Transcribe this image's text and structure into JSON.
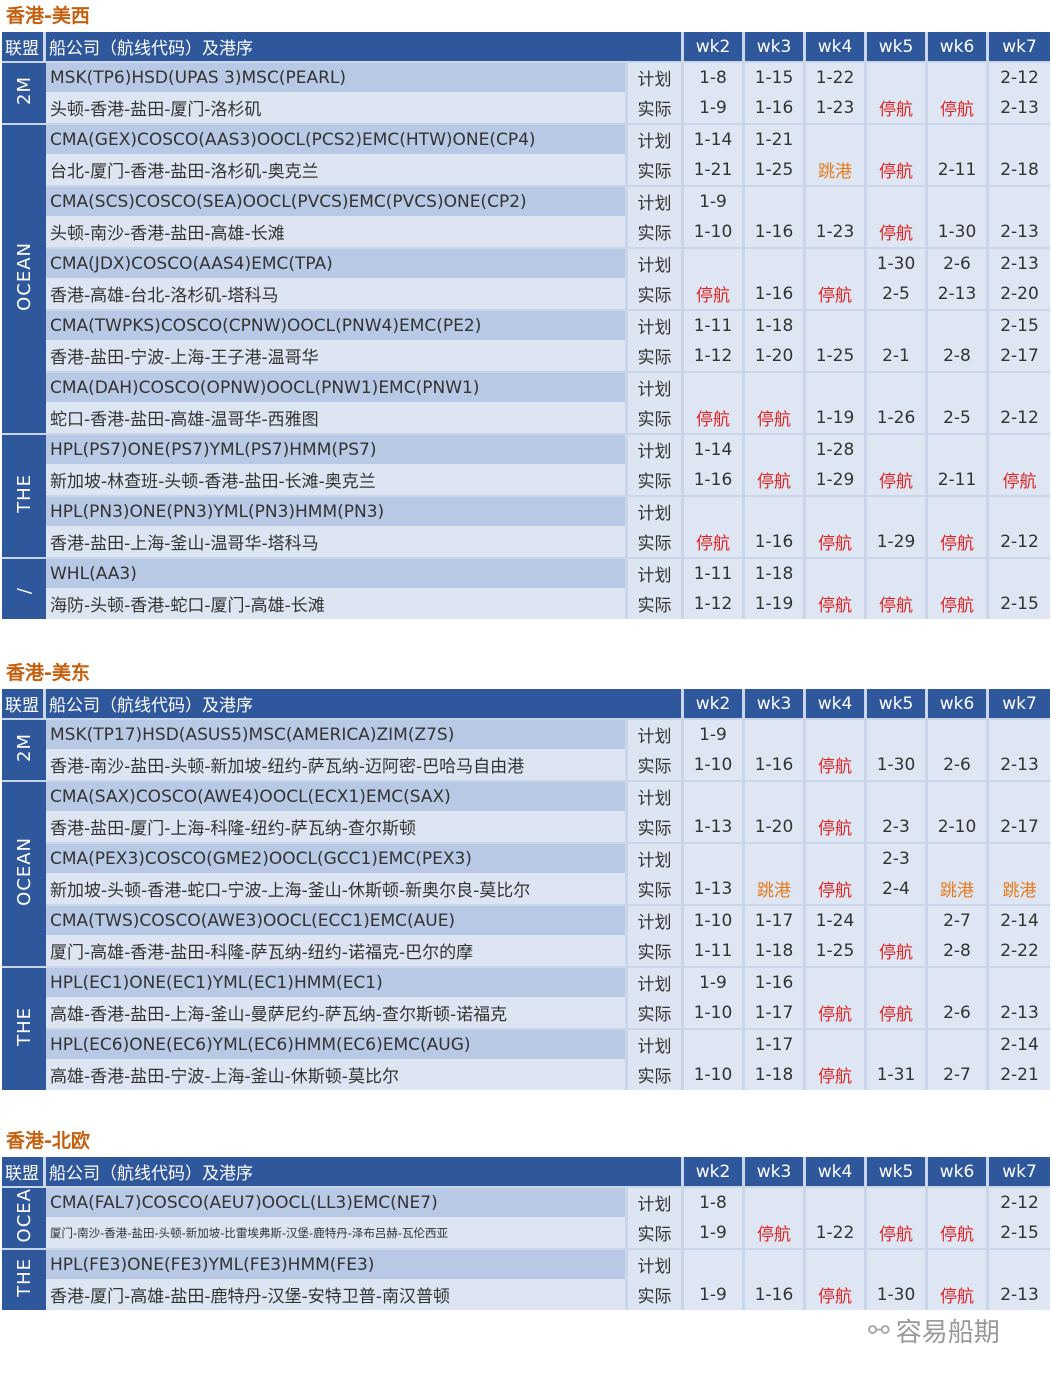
{
  "headers": {
    "alliance": "联盟",
    "route": "船公司（航线代码）及港序",
    "weeks": [
      "wk2",
      "wk3",
      "wk4",
      "wk5",
      "wk6",
      "wk7"
    ]
  },
  "labels": {
    "plan": "计划",
    "actual": "实际"
  },
  "colors": {
    "header": "#2f579b",
    "title": "#c5600f",
    "suspended": "#e02424",
    "skip": "#e87a1c"
  },
  "sections": [
    {
      "title": "香港-美西",
      "groups": [
        {
          "alliance": "2M",
          "services": [
            {
              "route": "MSK(TP6)HSD(UPAS 3)MSC(PEARL)",
              "ports": "头顿-香港-盐田-厦门-洛杉矶",
              "plan": [
                "1-8",
                "1-15",
                "1-22",
                "",
                "",
                "2-12"
              ],
              "actual": [
                "1-9",
                "1-16",
                "1-23",
                "停航",
                "停航",
                "2-13"
              ]
            }
          ]
        },
        {
          "alliance": "OCEAN",
          "services": [
            {
              "route": "CMA(GEX)COSCO(AAS3)OOCL(PCS2)EMC(HTW)ONE(CP4)",
              "ports": "台北-厦门-香港-盐田-洛杉矶-奥克兰",
              "plan": [
                "1-14",
                "1-21",
                "",
                "",
                "",
                ""
              ],
              "actual": [
                "1-21",
                "1-25",
                "跳港",
                "停航",
                "2-11",
                "2-18"
              ]
            },
            {
              "route": "CMA(SCS)COSCO(SEA)OOCL(PVCS)EMC(PVCS)ONE(CP2)",
              "ports": "头顿-南沙-香港-盐田-高雄-长滩",
              "plan": [
                "1-9",
                "",
                "",
                "",
                "",
                ""
              ],
              "actual": [
                "1-10",
                "1-16",
                "1-23",
                "停航",
                "1-30",
                "2-13"
              ]
            },
            {
              "route": "CMA(JDX)COSCO(AAS4)EMC(TPA)",
              "ports": "香港-高雄-台北-洛杉矶-塔科马",
              "plan": [
                "",
                "",
                "",
                "1-30",
                "2-6",
                "2-13"
              ],
              "actual": [
                "停航",
                "1-16",
                "停航",
                "2-5",
                "2-13",
                "2-20"
              ]
            },
            {
              "route": "CMA(TWPKS)COSCO(CPNW)OOCL(PNW4)EMC(PE2)",
              "ports": "香港-盐田-宁波-上海-王子港-温哥华",
              "plan": [
                "1-11",
                "1-18",
                "",
                "",
                "",
                "2-15"
              ],
              "actual": [
                "1-12",
                "1-20",
                "1-25",
                "2-1",
                "2-8",
                "2-17"
              ]
            },
            {
              "route": "CMA(DAH)COSCO(OPNW)OOCL(PNW1)EMC(PNW1)",
              "ports": "蛇口-香港-盐田-高雄-温哥华-西雅图",
              "plan": [
                "",
                "",
                "",
                "",
                "",
                ""
              ],
              "actual": [
                "停航",
                "停航",
                "1-19",
                "1-26",
                "2-5",
                "2-12"
              ]
            }
          ]
        },
        {
          "alliance": "THE",
          "services": [
            {
              "route": "HPL(PS7)ONE(PS7)YML(PS7)HMM(PS7)",
              "ports": "新加坡-林查班-头顿-香港-盐田-长滩-奥克兰",
              "plan": [
                "1-14",
                "",
                "1-28",
                "",
                "",
                ""
              ],
              "actual": [
                "1-16",
                "停航",
                "1-29",
                "停航",
                "2-11",
                "停航"
              ]
            },
            {
              "route": "HPL(PN3)ONE(PN3)YML(PN3)HMM(PN3)",
              "ports": "香港-盐田-上海-釜山-温哥华-塔科马",
              "plan": [
                "",
                "",
                "",
                "",
                "",
                ""
              ],
              "actual": [
                "停航",
                "1-16",
                "停航",
                "1-29",
                "停航",
                "2-12"
              ]
            }
          ]
        },
        {
          "alliance": "/",
          "services": [
            {
              "route": "WHL(AA3)",
              "ports": "海防-头顿-香港-蛇口-厦门-高雄-长滩",
              "plan": [
                "1-11",
                "1-18",
                "",
                "",
                "",
                ""
              ],
              "actual": [
                "1-12",
                "1-19",
                "停航",
                "停航",
                "停航",
                "2-15"
              ]
            }
          ]
        }
      ]
    },
    {
      "title": "香港-美东",
      "groups": [
        {
          "alliance": "2M",
          "services": [
            {
              "route": "MSK(TP17)HSD(ASUS5)MSC(AMERICA)ZIM(Z7S)",
              "ports": "香港-南沙-盐田-头顿-新加坡-纽约-萨瓦纳-迈阿密-巴哈马自由港",
              "plan": [
                "1-9",
                "",
                "",
                "",
                "",
                ""
              ],
              "actual": [
                "1-10",
                "1-16",
                "停航",
                "1-30",
                "2-6",
                "2-13"
              ]
            }
          ]
        },
        {
          "alliance": "OCEAN",
          "services": [
            {
              "route": "CMA(SAX)COSCO(AWE4)OOCL(ECX1)EMC(SAX)",
              "ports": "香港-盐田-厦门-上海-科隆-纽约-萨瓦纳-查尔斯顿",
              "plan": [
                "",
                "",
                "",
                "",
                "",
                ""
              ],
              "actual": [
                "1-13",
                "1-20",
                "停航",
                "2-3",
                "2-10",
                "2-17"
              ]
            },
            {
              "route": "CMA(PEX3)COSCO(GME2)OOCL(GCC1)EMC(PEX3)",
              "ports": "新加坡-头顿-香港-蛇口-宁波-上海-釜山-休斯顿-新奥尔良-莫比尔",
              "plan": [
                "",
                "",
                "",
                "2-3",
                "",
                ""
              ],
              "actual": [
                "1-13",
                "跳港",
                "停航",
                "2-4",
                "跳港",
                "跳港"
              ]
            },
            {
              "route": "CMA(TWS)COSCO(AWE3)OOCL(ECC1)EMC(AUE)",
              "ports": "厦门-高雄-香港-盐田-科隆-萨瓦纳-纽约-诺福克-巴尔的摩",
              "plan": [
                "1-10",
                "1-17",
                "1-24",
                "",
                "2-7",
                "2-14"
              ],
              "actual": [
                "1-11",
                "1-18",
                "1-25",
                "停航",
                "2-8",
                "2-22"
              ]
            }
          ]
        },
        {
          "alliance": "THE",
          "services": [
            {
              "route": "HPL(EC1)ONE(EC1)YML(EC1)HMM(EC1)",
              "ports": "高雄-香港-盐田-上海-釜山-曼萨尼约-萨瓦纳-查尔斯顿-诺福克",
              "plan": [
                "1-9",
                "1-16",
                "",
                "",
                "",
                ""
              ],
              "actual": [
                "1-10",
                "1-17",
                "停航",
                "停航",
                "2-6",
                "2-13"
              ]
            },
            {
              "route": "HPL(EC6)ONE(EC6)YML(EC6)HMM(EC6)EMC(AUG)",
              "ports": "高雄-香港-盐田-宁波-上海-釜山-休斯顿-莫比尔",
              "plan": [
                "",
                "1-17",
                "",
                "",
                "",
                "2-14"
              ],
              "actual": [
                "1-10",
                "1-18",
                "停航",
                "1-31",
                "2-7",
                "2-21"
              ]
            }
          ]
        }
      ]
    },
    {
      "title": "香港-北欧",
      "groups": [
        {
          "alliance": "OCEA",
          "services": [
            {
              "route": "CMA(FAL7)COSCO(AEU7)OOCL(LL3)EMC(NE7)",
              "ports": "厦门-南沙-香港-盐田-头顿-新加坡-比雷埃弗斯-汉堡-鹿特丹-泽布吕赫-瓦伦西亚",
              "small": true,
              "plan": [
                "1-8",
                "",
                "",
                "",
                "",
                "2-12"
              ],
              "actual": [
                "1-9",
                "停航",
                "1-22",
                "停航",
                "停航",
                "2-15"
              ]
            }
          ]
        },
        {
          "alliance": "THE",
          "services": [
            {
              "route": "HPL(FE3)ONE(FE3)YML(FE3)HMM(FE3)",
              "ports": "香港-厦门-高雄-盐田-鹿特丹-汉堡-安特卫普-南汉普顿",
              "plan": [
                "",
                "",
                "",
                "",
                "",
                ""
              ],
              "actual": [
                "1-9",
                "1-16",
                "停航",
                "1-30",
                "停航",
                "2-13"
              ]
            }
          ]
        }
      ]
    }
  ],
  "watermark": {
    "text": "容易船期",
    "icon": "wechat-icon"
  }
}
